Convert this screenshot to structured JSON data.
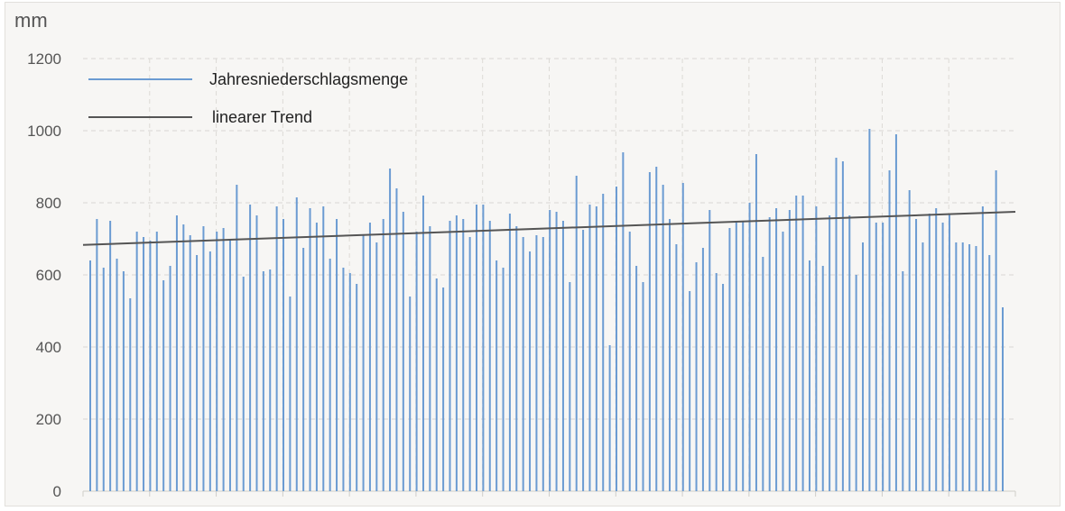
{
  "chart_data": {
    "type": "bar",
    "unit_label": "mm",
    "ylim": [
      0,
      1200
    ],
    "y_ticks": [
      "0",
      "200",
      "400",
      "600",
      "800",
      "1000",
      "1200"
    ],
    "grid": true,
    "legend_position": "top-left",
    "series": [
      {
        "name": "Jahresniederschlagsmenge",
        "color": "#6b9bd2",
        "values": [
          640,
          755,
          620,
          750,
          645,
          610,
          535,
          720,
          705,
          695,
          720,
          585,
          625,
          765,
          740,
          710,
          655,
          735,
          665,
          720,
          730,
          700,
          850,
          595,
          795,
          765,
          610,
          615,
          790,
          755,
          540,
          815,
          675,
          785,
          745,
          790,
          645,
          755,
          620,
          605,
          575,
          710,
          745,
          690,
          755,
          895,
          840,
          775,
          540,
          720,
          820,
          735,
          590,
          565,
          750,
          765,
          755,
          705,
          795,
          795,
          750,
          640,
          620,
          770,
          735,
          705,
          665,
          710,
          705,
          780,
          775,
          750,
          580,
          875,
          725,
          795,
          790,
          825,
          405,
          845,
          940,
          720,
          625,
          580,
          885,
          900,
          850,
          755,
          685,
          855,
          555,
          635,
          675,
          780,
          605,
          575,
          730,
          745,
          750,
          800,
          935,
          650,
          760,
          785,
          720,
          780,
          820,
          820,
          640,
          790,
          625,
          765,
          925,
          915,
          765,
          600,
          690,
          1005,
          745,
          745,
          890,
          990,
          610,
          835,
          755,
          690,
          770,
          785,
          745,
          770,
          690,
          690,
          685,
          680,
          790,
          655,
          890,
          510
        ]
      },
      {
        "name": "linearer Trend",
        "color": "#555555",
        "type": "line",
        "start": 683,
        "end": 775
      }
    ]
  }
}
